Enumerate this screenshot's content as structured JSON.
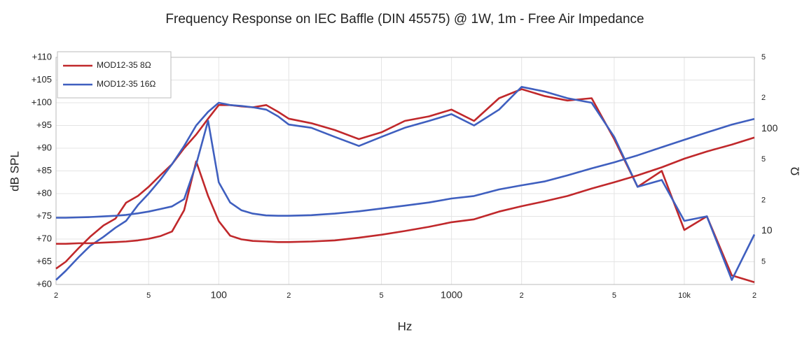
{
  "chart_data": {
    "type": "line",
    "title": "Frequency Response on IEC Baffle (DIN 45575) @ 1W, 1m - Free Air Impedance",
    "x_label": "Hz",
    "y_label": "dB SPL",
    "y2_label": "Ω",
    "xscale": "log",
    "y2scale": "log",
    "grid": true,
    "legend": "top-left",
    "xlim": [
      20,
      20000
    ],
    "ylim": [
      60,
      110
    ],
    "y2lim": [
      3,
      500
    ],
    "xticks": [
      {
        "value": 20,
        "label": "2"
      },
      {
        "value": 50,
        "label": "5"
      },
      100,
      {
        "value": 200,
        "label": "2"
      },
      {
        "value": 500,
        "label": "5"
      },
      1000,
      {
        "value": 2000,
        "label": "2"
      },
      {
        "value": 5000,
        "label": "5"
      },
      {
        "value": 10000,
        "label": "10k"
      },
      {
        "value": 20000,
        "label": "2"
      }
    ],
    "yticks": [
      {
        "value": 60,
        "label": "+60"
      },
      {
        "value": 65,
        "label": "+65"
      },
      {
        "value": 70,
        "label": "+70"
      },
      {
        "value": 75,
        "label": "+75"
      },
      {
        "value": 80,
        "label": "+80"
      },
      {
        "value": 85,
        "label": "+85"
      },
      {
        "value": 90,
        "label": "+90"
      },
      {
        "value": 95,
        "label": "+95"
      },
      {
        "value": 100,
        "label": "+100"
      },
      {
        "value": 105,
        "label": "+105"
      },
      {
        "value": 110,
        "label": "+110"
      }
    ],
    "y2ticks": [
      {
        "value": 5,
        "label": "5"
      },
      10,
      {
        "value": 20,
        "label": "2"
      },
      {
        "value": 50,
        "label": "5"
      },
      100,
      {
        "value": 200,
        "label": "2"
      },
      {
        "value": 500,
        "label": "5"
      }
    ],
    "x": [
      20,
      22,
      25,
      28,
      32,
      36,
      40,
      45,
      50,
      56,
      63,
      71,
      80,
      90,
      100,
      112,
      125,
      140,
      160,
      180,
      200,
      250,
      315,
      400,
      500,
      630,
      800,
      1000,
      1250,
      1600,
      2000,
      2500,
      3150,
      4000,
      5000,
      6300,
      8000,
      10000,
      12500,
      16000,
      20000
    ],
    "series": [
      {
        "name": "MOD12-35 8Ω",
        "color": "#c0282b",
        "values": [
          63.5,
          65,
          68,
          70.5,
          73,
          74.5,
          78,
          79.5,
          81.5,
          84,
          86.5,
          90,
          93,
          96.5,
          99.5,
          99.5,
          99.2,
          99,
          99.5,
          98,
          96.5,
          95.5,
          94,
          92,
          93.5,
          96,
          97,
          98.5,
          96,
          101,
          103,
          101.5,
          100.5,
          101,
          92,
          81.5,
          85,
          72,
          75,
          62,
          60.5
        ]
      },
      {
        "name": "MOD12-35 16Ω",
        "color": "#3f5fbf",
        "values": [
          61,
          63,
          66,
          68.5,
          70.5,
          72.5,
          74,
          77.5,
          80,
          83,
          86.5,
          90.5,
          95,
          98,
          100,
          99.5,
          99.3,
          99,
          98.5,
          97,
          95.2,
          94.5,
          92.5,
          90.5,
          92.5,
          94.5,
          96,
          97.5,
          95,
          98.5,
          103.5,
          102.5,
          101,
          100,
          92.5,
          81.5,
          83,
          74,
          75,
          61,
          71
        ]
      },
      {
        "name": "MOD12-35 8Ω",
        "color": "#c0282b",
        "axis": "y2",
        "values": [
          7.5,
          7.5,
          7.6,
          7.6,
          7.7,
          7.8,
          7.9,
          8.1,
          8.4,
          8.9,
          9.9,
          16,
          48,
          22,
          12.5,
          9,
          8.3,
          8,
          7.9,
          7.8,
          7.8,
          7.9,
          8.1,
          8.6,
          9.2,
          10,
          11,
          12.2,
          13,
          15.5,
          17.5,
          19.5,
          22,
          26,
          30,
          35,
          42,
          51,
          60,
          70,
          82
        ]
      },
      {
        "name": "MOD12-35 16Ω",
        "color": "#3f5fbf",
        "axis": "y2",
        "values": [
          13.5,
          13.5,
          13.6,
          13.7,
          13.9,
          14.1,
          14.4,
          14.9,
          15.5,
          16.4,
          17.4,
          20.5,
          45,
          120,
          30,
          19,
          16,
          14.8,
          14.2,
          14.1,
          14.1,
          14.3,
          14.8,
          15.6,
          16.6,
          17.7,
          19,
          20.8,
          22,
          25.5,
          28,
          30.5,
          35,
          41,
          47,
          55,
          66,
          78,
          92,
          110,
          125
        ]
      }
    ]
  }
}
